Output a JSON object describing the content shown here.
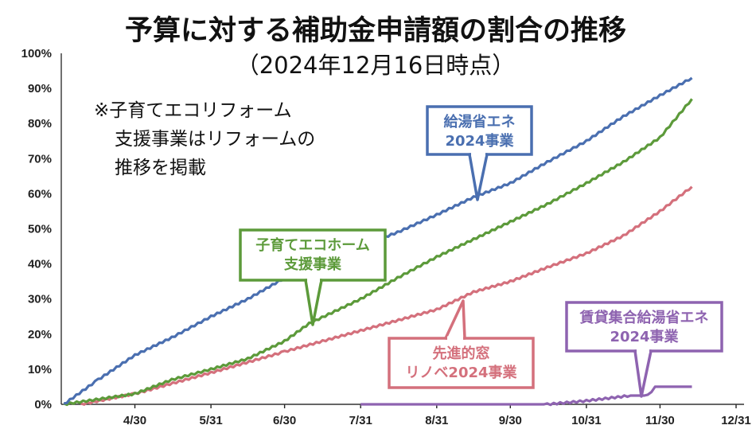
{
  "title": "予算に対する補助金申請額の割合の推移",
  "subtitle": "（2024年12月16日時点）",
  "note": [
    "※子育てエコリフォーム",
    "支援事業はリフォームの",
    "推移を掲載"
  ],
  "chart_data": {
    "type": "line",
    "x_labels": [
      "4/30",
      "5/31",
      "6/30",
      "7/31",
      "8/31",
      "9/30",
      "10/31",
      "11/30",
      "12/31"
    ],
    "y_labels": [
      "0%",
      "10%",
      "20%",
      "30%",
      "40%",
      "50%",
      "60%",
      "70%",
      "80%",
      "90%",
      "100%"
    ],
    "ylim": [
      0,
      100
    ],
    "xlim": [
      "2024-03-31",
      "2024-12-31"
    ],
    "grid": false,
    "series": [
      {
        "name": "給湯省エネ 2024事業",
        "label_lines": [
          "給湯省エネ",
          "2024事業"
        ],
        "color": "#4a6fb0",
        "points": [
          [
            "2024-04-01",
            0
          ],
          [
            "2024-04-15",
            7
          ],
          [
            "2024-04-30",
            14
          ],
          [
            "2024-05-15",
            19
          ],
          [
            "2024-05-31",
            25
          ],
          [
            "2024-06-15",
            30
          ],
          [
            "2024-06-30",
            36
          ],
          [
            "2024-07-15",
            40
          ],
          [
            "2024-07-31",
            45
          ],
          [
            "2024-08-15",
            49
          ],
          [
            "2024-08-31",
            54
          ],
          [
            "2024-09-15",
            59
          ],
          [
            "2024-09-30",
            63
          ],
          [
            "2024-10-15",
            69
          ],
          [
            "2024-10-31",
            75
          ],
          [
            "2024-11-15",
            82
          ],
          [
            "2024-11-30",
            88
          ],
          [
            "2024-12-13",
            93
          ]
        ]
      },
      {
        "name": "子育てエコホーム 支援事業",
        "label_lines": [
          "子育てエコホーム",
          "支援事業"
        ],
        "color": "#5c9a3a",
        "points": [
          [
            "2024-04-01",
            0
          ],
          [
            "2024-04-30",
            3
          ],
          [
            "2024-05-15",
            7
          ],
          [
            "2024-05-31",
            10
          ],
          [
            "2024-06-15",
            13
          ],
          [
            "2024-06-30",
            18
          ],
          [
            "2024-07-10",
            23
          ],
          [
            "2024-07-31",
            30
          ],
          [
            "2024-08-15",
            36
          ],
          [
            "2024-08-31",
            42
          ],
          [
            "2024-09-15",
            47
          ],
          [
            "2024-09-30",
            52
          ],
          [
            "2024-10-15",
            57
          ],
          [
            "2024-10-31",
            63
          ],
          [
            "2024-11-15",
            69
          ],
          [
            "2024-11-30",
            76
          ],
          [
            "2024-12-13",
            87
          ]
        ]
      },
      {
        "name": "先進的窓 リノベ2024事業",
        "label_lines": [
          "先進的窓",
          "リノベ2024事業"
        ],
        "color": "#d4707c",
        "points": [
          [
            "2024-04-08",
            0
          ],
          [
            "2024-04-30",
            3
          ],
          [
            "2024-05-31",
            9
          ],
          [
            "2024-06-30",
            15
          ],
          [
            "2024-07-31",
            21
          ],
          [
            "2024-08-31",
            27
          ],
          [
            "2024-09-15",
            32
          ],
          [
            "2024-09-30",
            35
          ],
          [
            "2024-10-15",
            39
          ],
          [
            "2024-10-31",
            43
          ],
          [
            "2024-11-15",
            48
          ],
          [
            "2024-11-30",
            55
          ],
          [
            "2024-12-13",
            62
          ]
        ]
      },
      {
        "name": "賃貸集合給湯省エネ 2024事業",
        "label_lines": [
          "賃貸集合給湯省エネ",
          "2024事業"
        ],
        "color": "#8e63b0",
        "points": [
          [
            "2024-07-31",
            0
          ],
          [
            "2024-10-15",
            0
          ],
          [
            "2024-10-31",
            1
          ],
          [
            "2024-11-18",
            2.5
          ],
          [
            "2024-11-25",
            2.5
          ],
          [
            "2024-11-28",
            5
          ],
          [
            "2024-12-13",
            5
          ]
        ]
      }
    ]
  }
}
